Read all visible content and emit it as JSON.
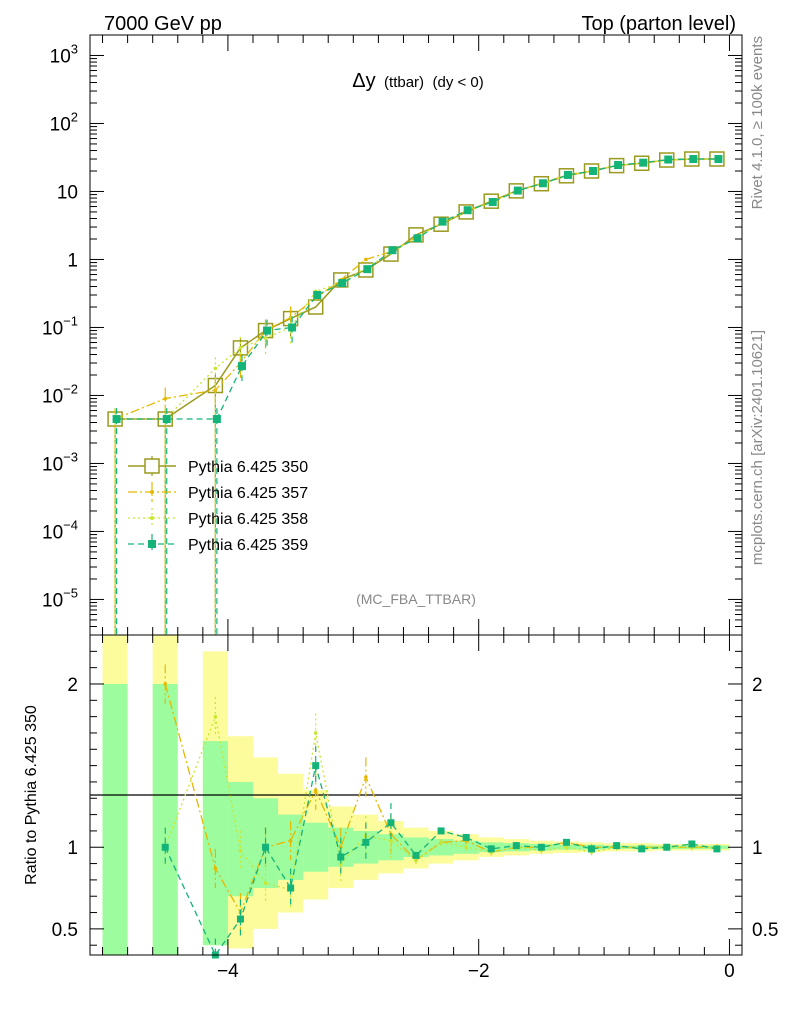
{
  "header": {
    "left": "7000 GeV pp",
    "right": "Top (parton level)"
  },
  "side_labels": {
    "rivet": "Rivet 4.1.0, ≥ 100k events",
    "mcplots": "mcplots.cern.ch [arXiv:2401.10621]"
  },
  "plot_title": {
    "symbol": "Δy",
    "sub": "(ttbar)",
    "cond": "(dy < 0)"
  },
  "analysis_tag": "(MC_FBA_TTBAR)",
  "ratio_ylabel": "Ratio to Pythia 6.425 350",
  "colors": {
    "s350": "#9a9a1e",
    "s357": "#e6b800",
    "s358": "#c8e632",
    "s359": "#14b478",
    "band_inner": "#9dfc9d",
    "band_outer": "#fcfc9d"
  },
  "chart_data": [
    {
      "type": "line",
      "panel": "main",
      "yscale": "log",
      "xlim": [
        -5.1,
        0.1
      ],
      "ylim": [
        3e-06,
        2000
      ],
      "yticks": [
        {
          "v": 1e-05,
          "label": "10",
          "exp": "−5"
        },
        {
          "v": 0.0001,
          "label": "10",
          "exp": "−4"
        },
        {
          "v": 0.001,
          "label": "10",
          "exp": "−3"
        },
        {
          "v": 0.01,
          "label": "10",
          "exp": "−2"
        },
        {
          "v": 0.1,
          "label": "10",
          "exp": "−1"
        },
        {
          "v": 1,
          "label": "1",
          "exp": ""
        },
        {
          "v": 10,
          "label": "10",
          "exp": ""
        },
        {
          "v": 100,
          "label": "10",
          "exp": "2"
        },
        {
          "v": 1000,
          "label": "10",
          "exp": "3"
        }
      ],
      "x": [
        -4.9,
        -4.5,
        -4.1,
        -3.9,
        -3.7,
        -3.5,
        -3.3,
        -3.1,
        -2.9,
        -2.7,
        -2.5,
        -2.3,
        -2.1,
        -1.9,
        -1.7,
        -1.5,
        -1.3,
        -1.1,
        -0.9,
        -0.7,
        -0.5,
        -0.3,
        -0.1
      ],
      "series": [
        {
          "name": "Pythia 6.425 350",
          "key": "s350",
          "values": [
            0.0045,
            0.0045,
            0.014,
            0.05,
            0.09,
            0.135,
            0.2,
            0.5,
            0.7,
            1.2,
            2.3,
            3.3,
            5.0,
            7.2,
            10.2,
            13.0,
            17.0,
            20.0,
            24.0,
            26.0,
            29.0,
            30.0,
            30.0
          ]
        },
        {
          "name": "Pythia 6.425 357",
          "key": "s357",
          "values": [
            0.0045,
            0.009,
            0.012,
            0.03,
            0.09,
            0.14,
            0.27,
            0.5,
            1.0,
            1.3,
            2.1,
            3.4,
            5.2,
            7.0,
            10.2,
            13.0,
            17.5,
            20.0,
            24.0,
            26.0,
            29.0,
            30.0,
            30.0
          ]
        },
        {
          "name": "Pythia 6.425 358",
          "key": "s358",
          "values": [
            0.0045,
            0.0045,
            0.025,
            0.05,
            0.07,
            0.1,
            0.34,
            0.45,
            0.75,
            1.25,
            2.1,
            3.4,
            5.0,
            7.0,
            10.2,
            12.8,
            17.0,
            20.0,
            24.0,
            26.0,
            29.0,
            30.0,
            30.0
          ]
        },
        {
          "name": "Pythia 6.425 359",
          "key": "s359",
          "values": [
            0.0045,
            0.0045,
            0.0045,
            0.027,
            0.09,
            0.1,
            0.3,
            0.45,
            0.72,
            1.37,
            2.05,
            3.6,
            5.3,
            7.0,
            10.3,
            13.2,
            17.5,
            20.0,
            24.5,
            26.5,
            29.5,
            30.0,
            30.0
          ]
        }
      ]
    },
    {
      "type": "line",
      "panel": "ratio",
      "xlim": [
        -5.1,
        0.1
      ],
      "ylim": [
        0.34,
        2.3
      ],
      "xticks": [
        -4,
        -2,
        0
      ],
      "xticklabels": [
        "−4",
        "−2",
        "0"
      ],
      "yticks": [
        0.5,
        1,
        2
      ],
      "yticklabels": [
        "0.5",
        "1",
        "2"
      ],
      "x": [
        -4.9,
        -4.5,
        -4.1,
        -3.9,
        -3.7,
        -3.5,
        -3.3,
        -3.1,
        -2.9,
        -2.7,
        -2.5,
        -2.3,
        -2.1,
        -1.9,
        -1.7,
        -1.5,
        -1.3,
        -1.1,
        -0.9,
        -0.7,
        -0.5,
        -0.3,
        -0.1
      ],
      "band": {
        "edges": [
          -5.0,
          -4.8,
          -4.6,
          -4.4,
          -4.2,
          -4.0,
          -3.8,
          -3.6,
          -3.4,
          -3.2,
          -3.0,
          -2.8,
          -2.6,
          -2.4,
          -2.2,
          -2.0,
          -1.8,
          -1.6,
          -1.4,
          -1.2,
          -1.0,
          -0.8,
          -0.6,
          -0.4,
          -0.2,
          0.0
        ],
        "inner": [
          [
            0.3,
            2.0
          ],
          null,
          [
            0.3,
            2.0
          ],
          null,
          [
            0.4,
            1.65
          ],
          [
            0.7,
            1.4
          ],
          [
            0.75,
            1.3
          ],
          [
            0.8,
            1.2
          ],
          [
            0.85,
            1.15
          ],
          [
            0.88,
            1.12
          ],
          [
            0.9,
            1.1
          ],
          [
            0.92,
            1.08
          ],
          [
            0.94,
            1.06
          ],
          [
            0.95,
            1.05
          ],
          [
            0.96,
            1.04
          ],
          [
            0.97,
            1.03
          ],
          [
            0.975,
            1.025
          ],
          [
            0.98,
            1.02
          ],
          [
            0.985,
            1.015
          ],
          [
            0.985,
            1.015
          ],
          [
            0.99,
            1.01
          ],
          [
            0.99,
            1.01
          ],
          [
            0.99,
            1.01
          ],
          [
            0.99,
            1.01
          ],
          [
            0.99,
            1.01
          ]
        ],
        "outer": [
          [
            0.3,
            2.5
          ],
          null,
          [
            0.3,
            2.5
          ],
          null,
          [
            0.4,
            2.2
          ],
          [
            0.38,
            1.68
          ],
          [
            0.5,
            1.55
          ],
          [
            0.6,
            1.45
          ],
          [
            0.68,
            1.35
          ],
          [
            0.75,
            1.25
          ],
          [
            0.8,
            1.2
          ],
          [
            0.84,
            1.16
          ],
          [
            0.87,
            1.12
          ],
          [
            0.9,
            1.1
          ],
          [
            0.92,
            1.08
          ],
          [
            0.94,
            1.06
          ],
          [
            0.95,
            1.05
          ],
          [
            0.96,
            1.04
          ],
          [
            0.965,
            1.035
          ],
          [
            0.97,
            1.03
          ],
          [
            0.975,
            1.025
          ],
          [
            0.975,
            1.025
          ],
          [
            0.98,
            1.02
          ],
          [
            0.98,
            1.02
          ],
          [
            0.98,
            1.02
          ]
        ]
      },
      "series": [
        {
          "name": "Pythia 6.425 357",
          "key": "s357",
          "values": [
            1.0,
            2.0,
            0.87,
            0.6,
            1.0,
            1.04,
            1.35,
            1.0,
            1.43,
            1.08,
            0.92,
            1.03,
            1.04,
            0.97,
            1.0,
            1.0,
            1.03,
            1.0,
            1.0,
            1.0,
            1.0,
            1.0,
            1.0
          ]
        },
        {
          "name": "Pythia 6.425 358",
          "key": "s358",
          "values": [
            1.0,
            1.0,
            1.8,
            0.98,
            0.78,
            0.74,
            1.7,
            0.9,
            1.07,
            1.04,
            0.92,
            1.03,
            1.0,
            0.97,
            1.0,
            0.98,
            1.0,
            0.97,
            1.0,
            1.0,
            1.0,
            1.0,
            1.0
          ]
        },
        {
          "name": "Pythia 6.425 359",
          "key": "s359",
          "values": [
            1.0,
            1.0,
            0.32,
            0.56,
            1.0,
            0.75,
            1.5,
            0.94,
            1.03,
            1.15,
            0.95,
            1.1,
            1.06,
            0.99,
            1.01,
            1.0,
            1.03,
            0.99,
            1.01,
            0.99,
            1.0,
            1.02,
            0.99
          ]
        }
      ]
    }
  ]
}
